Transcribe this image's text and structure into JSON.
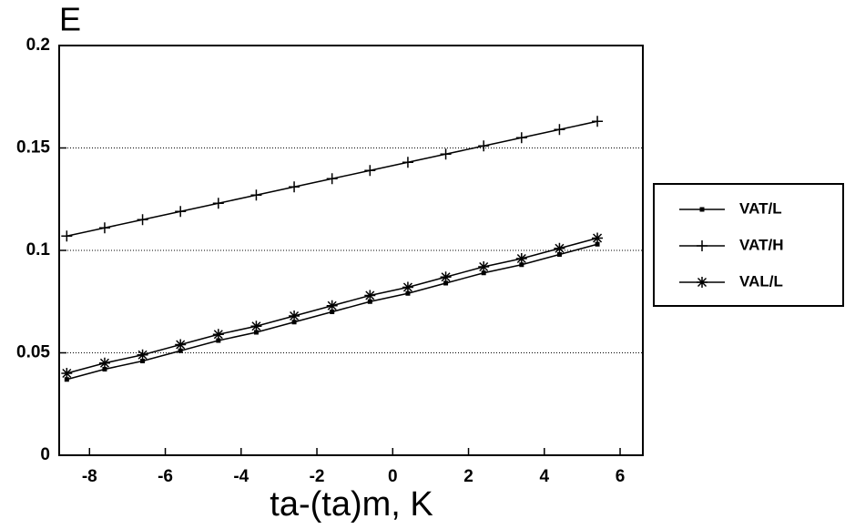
{
  "chart_data": {
    "type": "line",
    "y_label": "E",
    "x_label": "ta-(ta)m, K",
    "x": [
      -8.6,
      -7.6,
      -6.6,
      -5.6,
      -4.6,
      -3.6,
      -2.6,
      -1.6,
      -0.6,
      0.4,
      1.4,
      2.4,
      3.4,
      4.4,
      5.4
    ],
    "series": [
      {
        "name": "VAT/L",
        "color": "#000000",
        "marker": "square",
        "values": [
          0.037,
          0.042,
          0.046,
          0.051,
          0.056,
          0.06,
          0.065,
          0.07,
          0.075,
          0.079,
          0.084,
          0.089,
          0.093,
          0.098,
          0.103
        ]
      },
      {
        "name": "VAT/H",
        "color": "#000000",
        "marker": "plus",
        "values": [
          0.107,
          0.111,
          0.115,
          0.119,
          0.123,
          0.127,
          0.131,
          0.135,
          0.139,
          0.143,
          0.147,
          0.151,
          0.155,
          0.159,
          0.163
        ]
      },
      {
        "name": "VAL/L",
        "color": "#000000",
        "marker": "asterisk",
        "values": [
          0.04,
          0.045,
          0.049,
          0.054,
          0.059,
          0.063,
          0.068,
          0.073,
          0.078,
          0.082,
          0.087,
          0.092,
          0.096,
          0.101,
          0.106
        ]
      }
    ],
    "xlim": [
      -8.8,
      6.6
    ],
    "xticks": [
      -8,
      -6,
      -4,
      -2,
      0,
      2,
      4,
      6
    ],
    "ylim": [
      0,
      0.2
    ],
    "yticks": [
      0,
      0.05,
      0.1,
      0.15,
      0.2
    ],
    "grid": true,
    "legend": "right"
  }
}
